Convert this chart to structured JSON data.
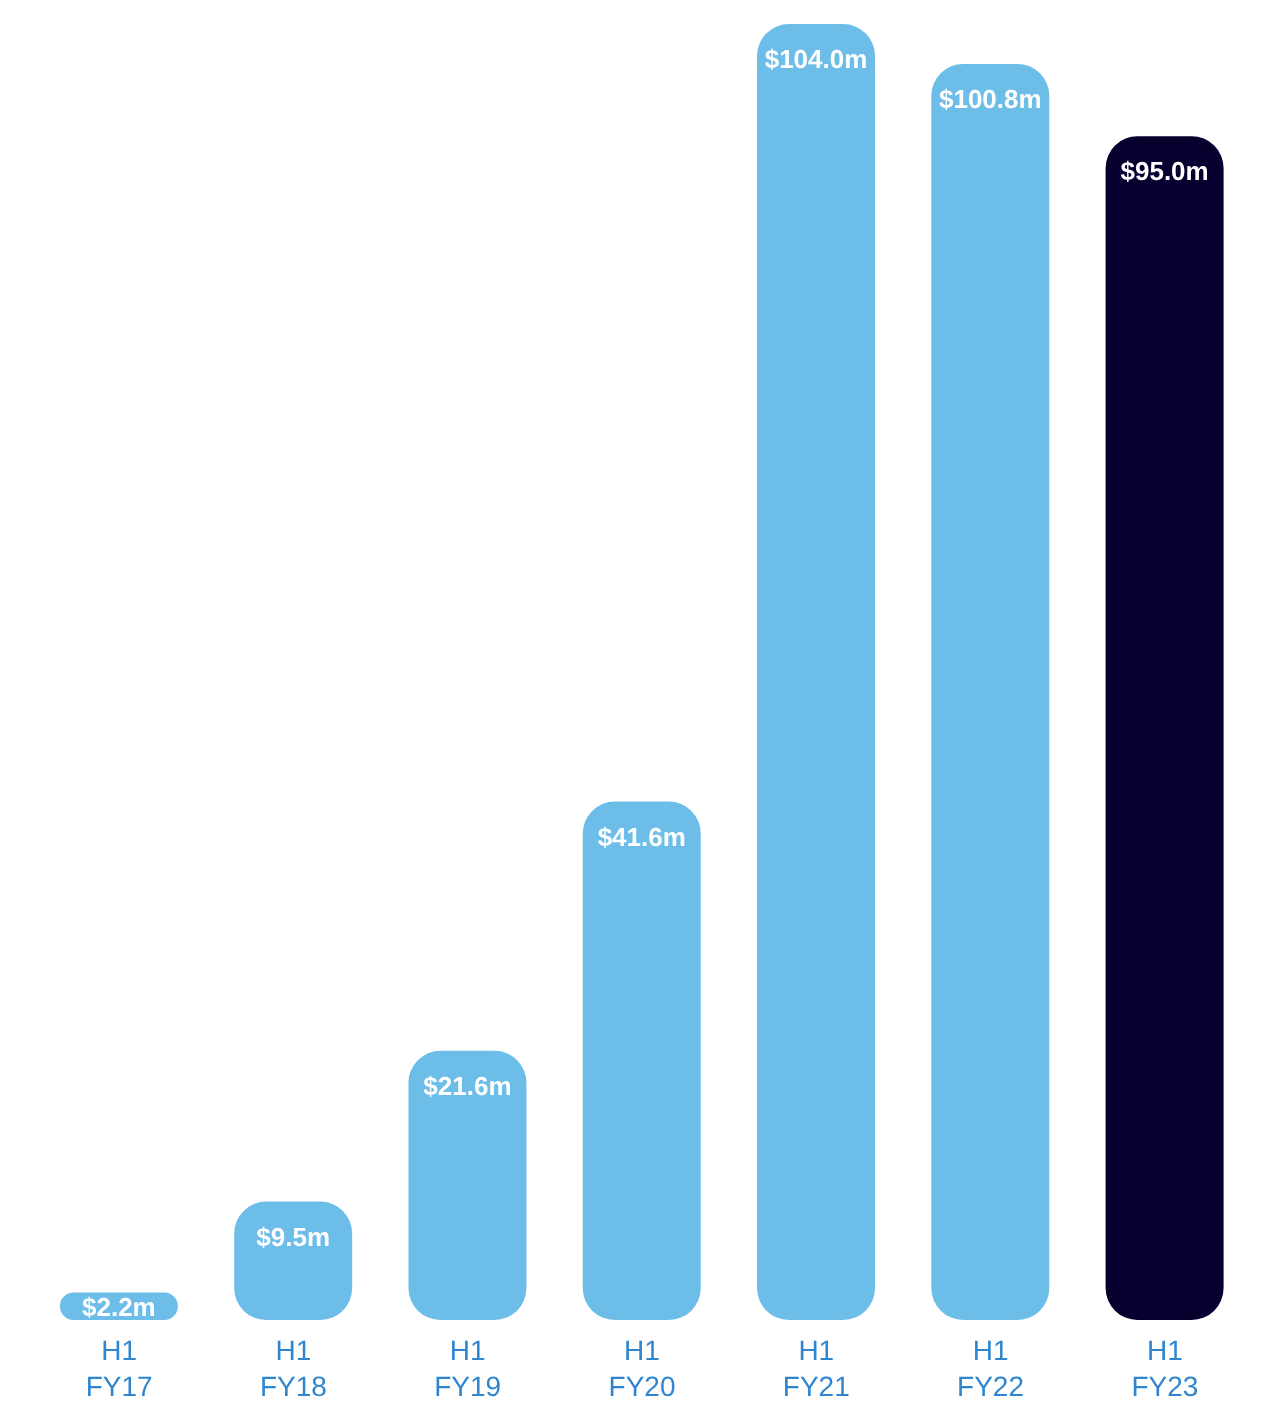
{
  "chart_data": {
    "type": "bar",
    "categories": [
      "H1 FY17",
      "H1 FY18",
      "H1 FY19",
      "H1 FY20",
      "H1 FY21",
      "H1 FY22",
      "H1 FY23"
    ],
    "values": [
      2.2,
      9.5,
      21.6,
      41.6,
      104.0,
      100.8,
      95.0
    ],
    "colors": [
      "#6dbde9",
      "#6dbde9",
      "#6dbde9",
      "#6dbde9",
      "#6dbde9",
      "#6dbde9",
      "#05002e"
    ],
    "value_labels": [
      "$2.2m",
      "$9.5m",
      "$21.6m",
      "$41.6m",
      "$104.0m",
      "$100.8m",
      "$95.0m"
    ],
    "grid": false,
    "legend": false
  }
}
